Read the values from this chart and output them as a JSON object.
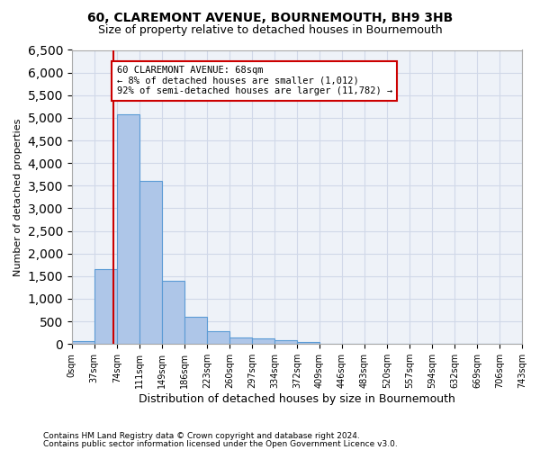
{
  "title1": "60, CLAREMONT AVENUE, BOURNEMOUTH, BH9 3HB",
  "title2": "Size of property relative to detached houses in Bournemouth",
  "xlabel": "Distribution of detached houses by size in Bournemouth",
  "ylabel": "Number of detached properties",
  "bar_values": [
    70,
    1650,
    5070,
    3600,
    1400,
    610,
    290,
    150,
    120,
    75,
    40,
    0,
    0,
    0,
    0,
    0,
    0,
    0,
    0,
    0
  ],
  "x_labels": [
    "0sqm",
    "37sqm",
    "74sqm",
    "111sqm",
    "149sqm",
    "186sqm",
    "223sqm",
    "260sqm",
    "297sqm",
    "334sqm",
    "372sqm",
    "409sqm",
    "446sqm",
    "483sqm",
    "520sqm",
    "557sqm",
    "594sqm",
    "632sqm",
    "669sqm",
    "706sqm",
    "743sqm"
  ],
  "bar_color": "#aec6e8",
  "bar_edge_color": "#5b9bd5",
  "grid_color": "#d0d8e8",
  "background_color": "#eef2f8",
  "vline_x": 1.84,
  "vline_color": "#cc0000",
  "annotation_text": "60 CLAREMONT AVENUE: 68sqm\n← 8% of detached houses are smaller (1,012)\n92% of semi-detached houses are larger (11,782) →",
  "annotation_box_color": "#ffffff",
  "annotation_box_edge_color": "#cc0000",
  "ylim": [
    0,
    6500
  ],
  "yticks": [
    0,
    500,
    1000,
    1500,
    2000,
    2500,
    3000,
    3500,
    4000,
    4500,
    5000,
    5500,
    6000,
    6500
  ],
  "footnote1": "Contains HM Land Registry data © Crown copyright and database right 2024.",
  "footnote2": "Contains public sector information licensed under the Open Government Licence v3.0."
}
